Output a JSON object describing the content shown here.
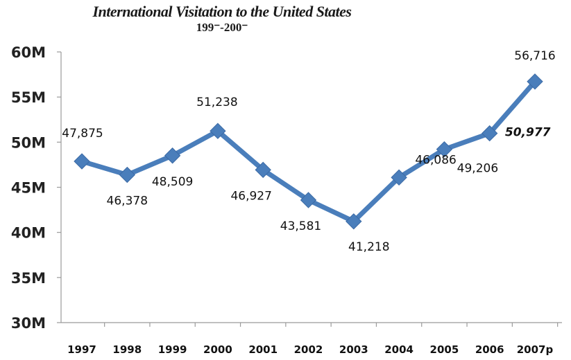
{
  "chart_data": {
    "type": "line",
    "title": "International Visitation to the United States",
    "subtitle": "199⁻-200⁻",
    "categories": [
      "1997",
      "1998",
      "1999",
      "2000",
      "2001",
      "2002",
      "2003",
      "2004",
      "2005",
      "2006",
      "2007p"
    ],
    "series": [
      {
        "values": [
          47875,
          46378,
          48509,
          51238,
          46927,
          43581,
          41218,
          46086,
          49206,
          50977,
          56716
        ],
        "labels": [
          "47,875",
          "46,378",
          "48,509",
          "51,238",
          "46,927",
          "43,581",
          "41,218",
          "46,086",
          "49,206",
          "50,977",
          "56,716"
        ]
      }
    ],
    "ylim": [
      30000,
      60000
    ],
    "yticks": [
      {
        "value": 30000,
        "label": "30M"
      },
      {
        "value": 35000,
        "label": "35M"
      },
      {
        "value": 40000,
        "label": "40M"
      },
      {
        "value": 45000,
        "label": "45M"
      },
      {
        "value": 50000,
        "label": "50M"
      },
      {
        "value": 55000,
        "label": "55M"
      },
      {
        "value": 60000,
        "label": "60M"
      }
    ],
    "xlabel": "",
    "ylabel": "",
    "grid": false,
    "line_color": "#4a7ebb",
    "marker": "diamond"
  }
}
